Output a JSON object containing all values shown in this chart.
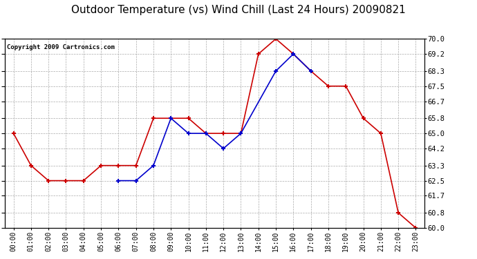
{
  "title": "Outdoor Temperature (vs) Wind Chill (Last 24 Hours) 20090821",
  "copyright": "Copyright 2009 Cartronics.com",
  "hours": [
    "00:00",
    "01:00",
    "02:00",
    "03:00",
    "04:00",
    "05:00",
    "06:00",
    "07:00",
    "08:00",
    "09:00",
    "10:00",
    "11:00",
    "12:00",
    "13:00",
    "14:00",
    "15:00",
    "16:00",
    "17:00",
    "18:00",
    "19:00",
    "20:00",
    "21:00",
    "22:00",
    "23:00"
  ],
  "temp": [
    65.0,
    63.3,
    62.5,
    62.5,
    62.5,
    63.3,
    63.3,
    63.3,
    65.8,
    65.8,
    65.8,
    65.0,
    65.0,
    65.0,
    69.2,
    70.0,
    69.2,
    68.3,
    67.5,
    67.5,
    65.8,
    65.0,
    60.8,
    60.0
  ],
  "windchill": [
    null,
    null,
    null,
    null,
    null,
    null,
    62.5,
    62.5,
    63.3,
    65.8,
    65.0,
    65.0,
    64.2,
    65.0,
    null,
    68.3,
    69.2,
    68.3,
    null,
    null,
    null,
    null,
    null,
    null
  ],
  "temp_color": "#cc0000",
  "windchill_color": "#0000cc",
  "ylim_min": 60.0,
  "ylim_max": 70.0,
  "yticks": [
    60.0,
    60.8,
    61.7,
    62.5,
    63.3,
    64.2,
    65.0,
    65.8,
    66.7,
    67.5,
    68.3,
    69.2,
    70.0
  ],
  "background_color": "#ffffff",
  "grid_color": "#aaaaaa",
  "title_fontsize": 11,
  "copyright_fontsize": 6.5,
  "tick_fontsize": 7,
  "ytick_fontsize": 7.5
}
